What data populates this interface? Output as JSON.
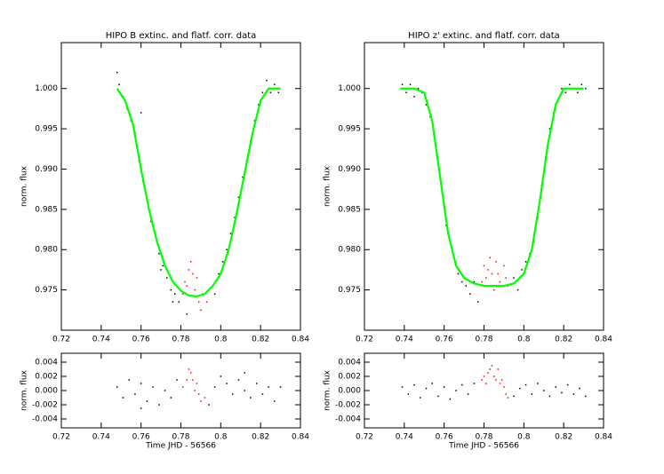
{
  "chart_data": [
    {
      "type": "scatter",
      "title": "HIPO B extinc. and flatf. corr. data",
      "y_label": "norm. flux",
      "xlim": [
        0.72,
        0.84
      ],
      "xticks": [
        0.72,
        0.74,
        0.76,
        0.78,
        0.8,
        0.82,
        0.84
      ],
      "ylim": [
        0.97,
        1.0057
      ],
      "yticks": [
        0.975,
        {
          "value": 0.98,
          "label": "0.980"
        },
        0.985,
        {
          "value": 0.99,
          "label": "0.990"
        },
        0.995,
        {
          "value": 1,
          "label": "1.000"
        }
      ],
      "series": [
        {
          "type": "scatter",
          "color": "#000000",
          "x": [
            0.749,
            0.751,
            0.753,
            0.755,
            0.757,
            0.759,
            0.761,
            0.763,
            0.765,
            0.767,
            0.769,
            0.771,
            0.773,
            0.775,
            0.777,
            0.779,
            0.797,
            0.799,
            0.801,
            0.803,
            0.805,
            0.807,
            0.809,
            0.811,
            0.813,
            0.815,
            0.817,
            0.819,
            0.821,
            0.823,
            0.825,
            0.827,
            0.829,
            0.77,
            0.776,
            0.783,
            0.76,
            0.748
          ],
          "values": [
            1.0005,
            0.999,
            0.9975,
            0.996,
            0.9945,
            0.991,
            0.9885,
            0.9865,
            0.9835,
            0.982,
            0.9795,
            0.978,
            0.9765,
            0.975,
            0.9745,
            0.9735,
            0.9745,
            0.977,
            0.9785,
            0.98,
            0.982,
            0.984,
            0.9865,
            0.989,
            0.991,
            0.9935,
            0.996,
            0.998,
            0.9995,
            1.001,
            0.9995,
            1.0005,
            0.9995,
            0.9775,
            0.9735,
            0.972,
            0.997,
            1.002
          ]
        },
        {
          "type": "scatter",
          "color": "#ff0000",
          "x": [
            0.781,
            0.782,
            0.783,
            0.784,
            0.785,
            0.786,
            0.787,
            0.788,
            0.789,
            0.79,
            0.791,
            0.793
          ],
          "values": [
            0.9745,
            0.976,
            0.9755,
            0.9775,
            0.9785,
            0.977,
            0.975,
            0.9765,
            0.9735,
            0.9725,
            0.9745,
            0.9735
          ]
        },
        {
          "type": "line",
          "color": "#00ff00",
          "x": [
            0.748,
            0.752,
            0.756,
            0.76,
            0.764,
            0.768,
            0.772,
            0.776,
            0.78,
            0.784,
            0.788,
            0.792,
            0.796,
            0.8,
            0.804,
            0.808,
            0.812,
            0.816,
            0.82,
            0.824,
            0.83
          ],
          "values": [
            1.0,
            0.9985,
            0.9955,
            0.99,
            0.985,
            0.981,
            0.978,
            0.976,
            0.9749,
            0.9743,
            0.9742,
            0.9745,
            0.9755,
            0.977,
            0.98,
            0.9845,
            0.9895,
            0.9945,
            0.9985,
            1.0,
            1.0
          ]
        }
      ]
    },
    {
      "type": "scatter",
      "title": "HIPO z' extinc. and flatf. corr. data",
      "y_label": "norm. flux",
      "xlim": [
        0.72,
        0.84
      ],
      "xticks": [
        0.72,
        0.74,
        0.76,
        0.78,
        0.8,
        0.82,
        0.84
      ],
      "ylim": [
        0.97,
        1.0057
      ],
      "yticks": [
        0.975,
        {
          "value": 0.98,
          "label": "0.980"
        },
        0.985,
        {
          "value": 0.99,
          "label": "0.990"
        },
        0.995,
        {
          "value": 1,
          "label": "1.000"
        }
      ],
      "series": [
        {
          "type": "scatter",
          "color": "#000000",
          "x": [
            0.739,
            0.741,
            0.743,
            0.745,
            0.747,
            0.749,
            0.751,
            0.753,
            0.755,
            0.757,
            0.759,
            0.761,
            0.763,
            0.765,
            0.767,
            0.769,
            0.771,
            0.773,
            0.775,
            0.777,
            0.795,
            0.797,
            0.799,
            0.801,
            0.803,
            0.805,
            0.807,
            0.809,
            0.811,
            0.813,
            0.815,
            0.817,
            0.819,
            0.821,
            0.823,
            0.825,
            0.827,
            0.829,
            0.831
          ],
          "values": [
            1.0005,
            0.9995,
            1.0005,
            0.999,
            1.0,
            0.9995,
            0.998,
            0.9965,
            0.994,
            0.9905,
            0.987,
            0.983,
            0.981,
            0.979,
            0.977,
            0.976,
            0.9755,
            0.9745,
            0.976,
            0.9735,
            0.9765,
            0.975,
            0.9775,
            0.9785,
            0.9795,
            0.981,
            0.984,
            0.988,
            0.9915,
            0.995,
            0.997,
            0.9985,
            1.0,
            0.9995,
            1.0005,
            1.0,
            0.9995,
            1.0005,
            1.0
          ]
        },
        {
          "type": "scatter",
          "color": "#ff0000",
          "x": [
            0.779,
            0.78,
            0.781,
            0.782,
            0.783,
            0.784,
            0.785,
            0.786,
            0.787,
            0.788,
            0.789,
            0.79,
            0.791,
            0.792
          ],
          "values": [
            0.976,
            0.978,
            0.9765,
            0.9775,
            0.979,
            0.977,
            0.975,
            0.9785,
            0.977,
            0.976,
            0.9755,
            0.978,
            0.9765,
            0.9755
          ]
        },
        {
          "type": "line",
          "color": "#00ff00",
          "x": [
            0.738,
            0.745,
            0.75,
            0.754,
            0.758,
            0.762,
            0.766,
            0.77,
            0.775,
            0.78,
            0.785,
            0.79,
            0.795,
            0.8,
            0.804,
            0.808,
            0.812,
            0.816,
            0.82,
            0.823,
            0.83
          ],
          "values": [
            1.0,
            1.0,
            0.9995,
            0.996,
            0.989,
            0.982,
            0.978,
            0.9765,
            0.9758,
            0.9755,
            0.9755,
            0.9755,
            0.9758,
            0.977,
            0.98,
            0.986,
            0.993,
            0.998,
            1.0,
            1.0,
            1.0
          ]
        }
      ]
    },
    {
      "type": "scatter",
      "y_label": "norm. flux",
      "x_label": "Time JHD - 56566",
      "xlim": [
        0.72,
        0.84
      ],
      "xticks": [
        0.72,
        0.74,
        0.76,
        0.78,
        0.8,
        0.82,
        0.84
      ],
      "ylim": [
        -0.00525,
        0.00525
      ],
      "yticks": [
        -0.004,
        -0.002,
        {
          "value": 0,
          "label": "0.000"
        },
        0.002,
        0.004
      ],
      "series": [
        {
          "type": "scatter",
          "color": "#000000",
          "x": [
            0.748,
            0.751,
            0.754,
            0.757,
            0.76,
            0.763,
            0.766,
            0.769,
            0.772,
            0.775,
            0.778,
            0.794,
            0.797,
            0.8,
            0.803,
            0.806,
            0.809,
            0.812,
            0.815,
            0.818,
            0.821,
            0.824,
            0.827,
            0.83,
            0.76,
            0.812
          ],
          "values": [
            0.0005,
            -0.001,
            0.0015,
            -0.0005,
            0.001,
            -0.0015,
            0.0005,
            -0.002,
            0.0,
            -0.001,
            0.0015,
            -0.002,
            0.0005,
            0.002,
            0.001,
            -0.0005,
            0.0015,
            0.0,
            -0.001,
            0.001,
            -0.0005,
            0.0005,
            -0.0015,
            0.0005,
            -0.0025,
            0.0025
          ]
        },
        {
          "type": "scatter",
          "color": "#ff0000",
          "x": [
            0.781,
            0.783,
            0.784,
            0.785,
            0.786,
            0.787,
            0.788,
            0.789,
            0.79,
            0.792
          ],
          "values": [
            0.0005,
            0.0015,
            0.003,
            0.0025,
            0.0015,
            0.0,
            0.001,
            -0.0005,
            -0.0015,
            -0.001
          ]
        }
      ]
    },
    {
      "type": "scatter",
      "y_label": "norm. flux",
      "x_label": "Time JHD - 56566",
      "xlim": [
        0.72,
        0.84
      ],
      "xticks": [
        0.72,
        0.74,
        0.76,
        0.78,
        0.8,
        0.82,
        0.84
      ],
      "ylim": [
        -0.00525,
        0.00525
      ],
      "yticks": [
        -0.004,
        -0.002,
        {
          "value": 0,
          "label": "0.000"
        },
        0.002,
        0.004
      ],
      "series": [
        {
          "type": "scatter",
          "color": "#000000",
          "x": [
            0.739,
            0.742,
            0.745,
            0.748,
            0.751,
            0.754,
            0.757,
            0.76,
            0.763,
            0.766,
            0.769,
            0.772,
            0.775,
            0.795,
            0.798,
            0.801,
            0.804,
            0.807,
            0.81,
            0.813,
            0.816,
            0.819,
            0.822,
            0.825,
            0.828,
            0.831
          ],
          "values": [
            0.0005,
            -0.0005,
            0.0008,
            -0.001,
            0.0003,
            0.001,
            -0.0008,
            0.0005,
            -0.0012,
            0.0,
            0.0008,
            -0.0005,
            0.001,
            -0.0008,
            0.0003,
            0.0008,
            -0.0005,
            0.001,
            0.0,
            -0.0008,
            0.0005,
            -0.0003,
            0.0008,
            -0.0005,
            0.0003,
            -0.0008
          ]
        },
        {
          "type": "scatter",
          "color": "#ff0000",
          "x": [
            0.779,
            0.78,
            0.781,
            0.782,
            0.783,
            0.784,
            0.785,
            0.786,
            0.787,
            0.788,
            0.789,
            0.79,
            0.791,
            0.792
          ],
          "values": [
            0.0015,
            0.002,
            0.001,
            0.0025,
            0.003,
            0.0035,
            0.002,
            0.0015,
            0.003,
            0.001,
            0.0015,
            0.0005,
            -0.0005,
            -0.001
          ]
        }
      ]
    }
  ]
}
